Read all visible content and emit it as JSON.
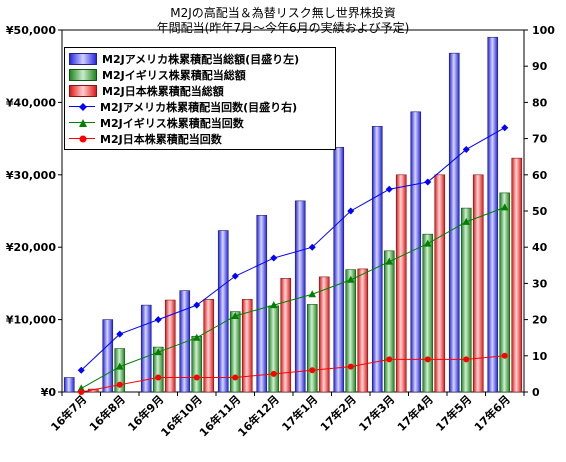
{
  "title": "M2Jの高配当＆為替リスク無し世界株投資",
  "subtitle": "年間配当(昨年7月～今年6月の実績および予定)",
  "chart_data": {
    "type": "bar",
    "categories": [
      "16年7月",
      "16年8月",
      "16年9月",
      "16年10月",
      "16年11月",
      "16年12月",
      "17年1月",
      "17年2月",
      "17年3月",
      "17年4月",
      "17年5月",
      "17年6月"
    ],
    "y_left": {
      "min": 0,
      "max": 50000,
      "ticks": [
        "¥0",
        "¥10,000",
        "¥20,000",
        "¥30,000",
        "¥40,000",
        "¥50,000"
      ],
      "tick_values": [
        0,
        10000,
        20000,
        30000,
        40000,
        50000
      ]
    },
    "y_right": {
      "min": 0,
      "max": 100,
      "ticks": [
        "0",
        "10",
        "20",
        "30",
        "40",
        "50",
        "60",
        "70",
        "80",
        "90",
        "100"
      ],
      "tick_values": [
        0,
        10,
        20,
        30,
        40,
        50,
        60,
        70,
        80,
        90,
        100
      ]
    },
    "grid": false,
    "legend_position": "top-left",
    "bar_series": [
      {
        "name": "M2Jアメリカ株累積配当総額(目盛り左)",
        "color": "#3333ff",
        "values": [
          2000,
          10000,
          12000,
          14000,
          22300,
          24400,
          26400,
          33800,
          36700,
          38700,
          46800,
          49000
        ]
      },
      {
        "name": "M2Jイギリス株累積配当総額",
        "color": "#339933",
        "values": [
          0,
          6000,
          6200,
          7700,
          11100,
          11900,
          12100,
          16900,
          19500,
          21800,
          25400,
          27500
        ]
      },
      {
        "name": "M2J日本株累積配当総額",
        "color": "#ff3333",
        "values": [
          400,
          0,
          12700,
          12800,
          12800,
          15700,
          15900,
          17000,
          30000,
          30000,
          30000,
          32300
        ]
      }
    ],
    "line_series": [
      {
        "name": "M2Jアメリカ株累積配当回数(目盛り右)",
        "color": "#0000ff",
        "marker": "diamond",
        "values": [
          6,
          16,
          20,
          24,
          32,
          37,
          40,
          50,
          56,
          58,
          67,
          73
        ]
      },
      {
        "name": "M2Jイギリス株累積配当回数",
        "color": "#008000",
        "marker": "triangle",
        "values": [
          1,
          7,
          11,
          15,
          21,
          24,
          27,
          31,
          36,
          41,
          47,
          51
        ]
      },
      {
        "name": "M2J日本株累積配当回数",
        "color": "#ff0000",
        "marker": "circle",
        "values": [
          0,
          2,
          4,
          4,
          4,
          5,
          6,
          7,
          9,
          9,
          9,
          10
        ]
      }
    ]
  }
}
